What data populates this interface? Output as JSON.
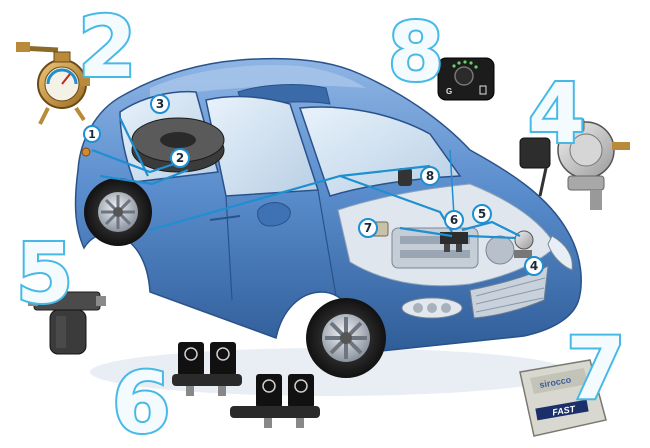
{
  "big_numbers": {
    "n2": "2",
    "n8": "8",
    "n4": "4",
    "n5": "5",
    "n6": "6",
    "n7": "7"
  },
  "callouts": {
    "c1": "1",
    "c2": "2",
    "c3": "3",
    "c4": "4",
    "c5": "5",
    "c6": "6",
    "c7": "7",
    "c8": "8"
  },
  "components": {
    "switch_letter": "G",
    "ecu_logo": "sirocco",
    "ecu_model": "FAST"
  },
  "colors": {
    "car_body": "#4a80c4",
    "car_shadow": "#2f5d98",
    "gas_line": "#1e8fd0",
    "number_stroke": "#47b9e6"
  }
}
